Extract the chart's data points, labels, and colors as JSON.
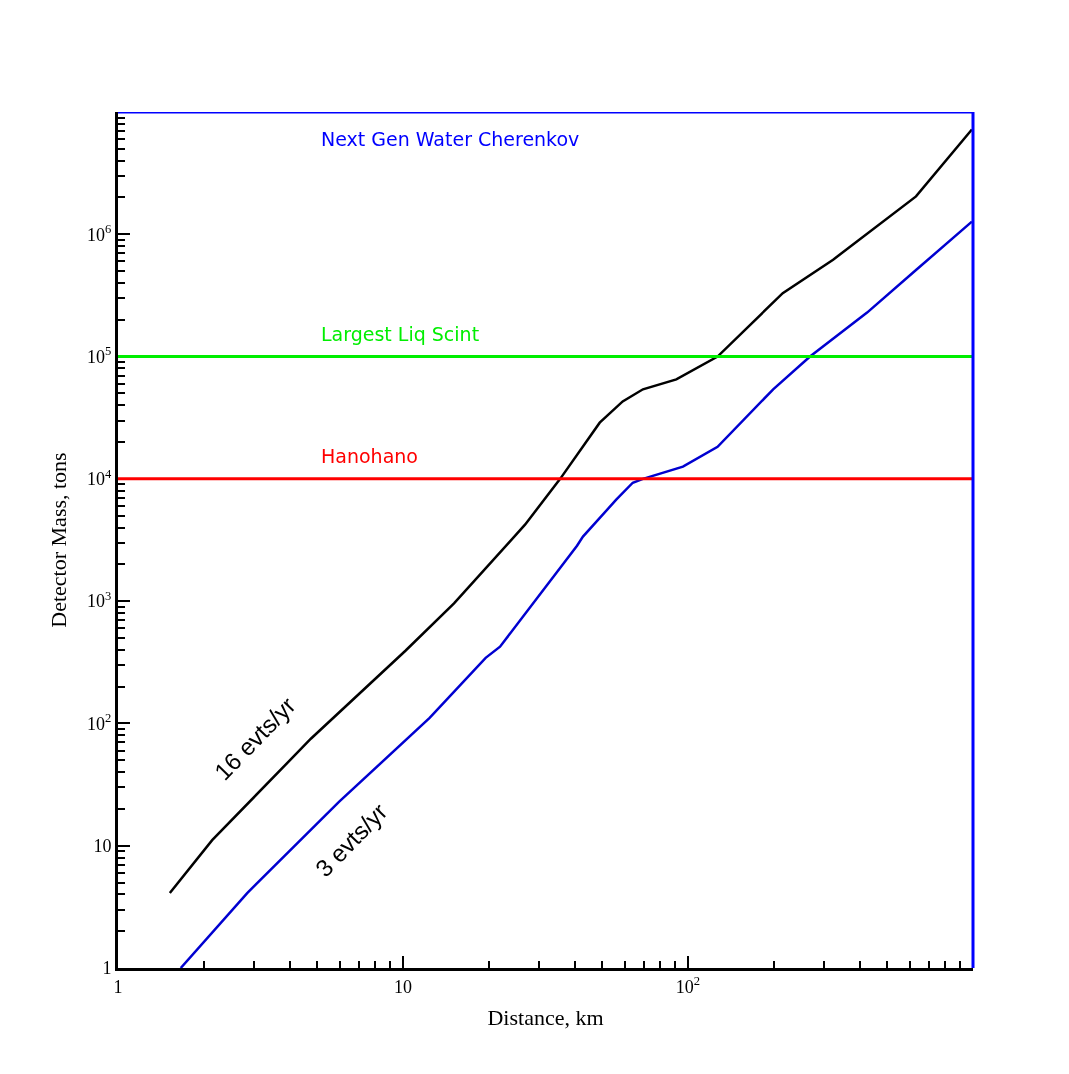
{
  "chart_data": {
    "type": "line",
    "xlabel": "Distance, km",
    "ylabel": "Detector Mass, tons",
    "log": "xy",
    "xlim": [
      1,
      1000
    ],
    "ylim": [
      1,
      10000000
    ],
    "xticks": [
      1,
      10,
      {
        "value": 100,
        "label": "10$^{2}$"
      }
    ],
    "yticks": [
      1,
      10,
      {
        "value": 100,
        "label": "10$^{2}$"
      },
      {
        "value": 1000,
        "label": "10$^{3}$"
      },
      {
        "value": 10000,
        "label": "10$^{4}$"
      },
      {
        "value": 100000,
        "label": "10$^{5}$"
      },
      {
        "value": 1000000,
        "label": "10$^{6}$"
      }
    ],
    "legend": false,
    "marker": "none",
    "line_style": "solid",
    "series": [
      {
        "name": "16 evts/yr",
        "color": "#000000",
        "x": [
          1.52,
          2.14,
          4.75,
          10.2,
          15.1,
          26.8,
          35.6,
          49,
          59,
          69.5,
          91,
          127,
          215,
          323,
          631,
          991
        ],
        "values": [
          4.1,
          11.1,
          75,
          393,
          960,
          4220,
          10000,
          28800,
          43000,
          54000,
          65000,
          100000,
          330000,
          620000,
          2040000,
          7200000
        ]
      },
      {
        "name": "3 evts/yr",
        "color": "#0000d0",
        "x": [
          1.66,
          2.84,
          5.96,
          12.4,
          19.5,
          21.9,
          40.8,
          42.8,
          56,
          64,
          69.5,
          96,
          127,
          199,
          268,
          425,
          631,
          991
        ],
        "values": [
          1,
          4.1,
          22.8,
          111,
          344,
          424,
          2840,
          3370,
          6760,
          9300,
          10000,
          12600,
          18300,
          54000,
          100000,
          229000,
          510000,
          1270000
        ]
      }
    ],
    "ref_lines": [
      {
        "axis": "y",
        "value": 10000,
        "label": "Hanohano",
        "color": "#ff0000"
      },
      {
        "axis": "y",
        "value": 100000,
        "label": "Largest Liq Scint",
        "color": "#00ee00"
      },
      {
        "axis": "y",
        "value": 10000000,
        "label": "Next Gen Water Cherenkov",
        "color": "#0000ff"
      }
    ]
  }
}
